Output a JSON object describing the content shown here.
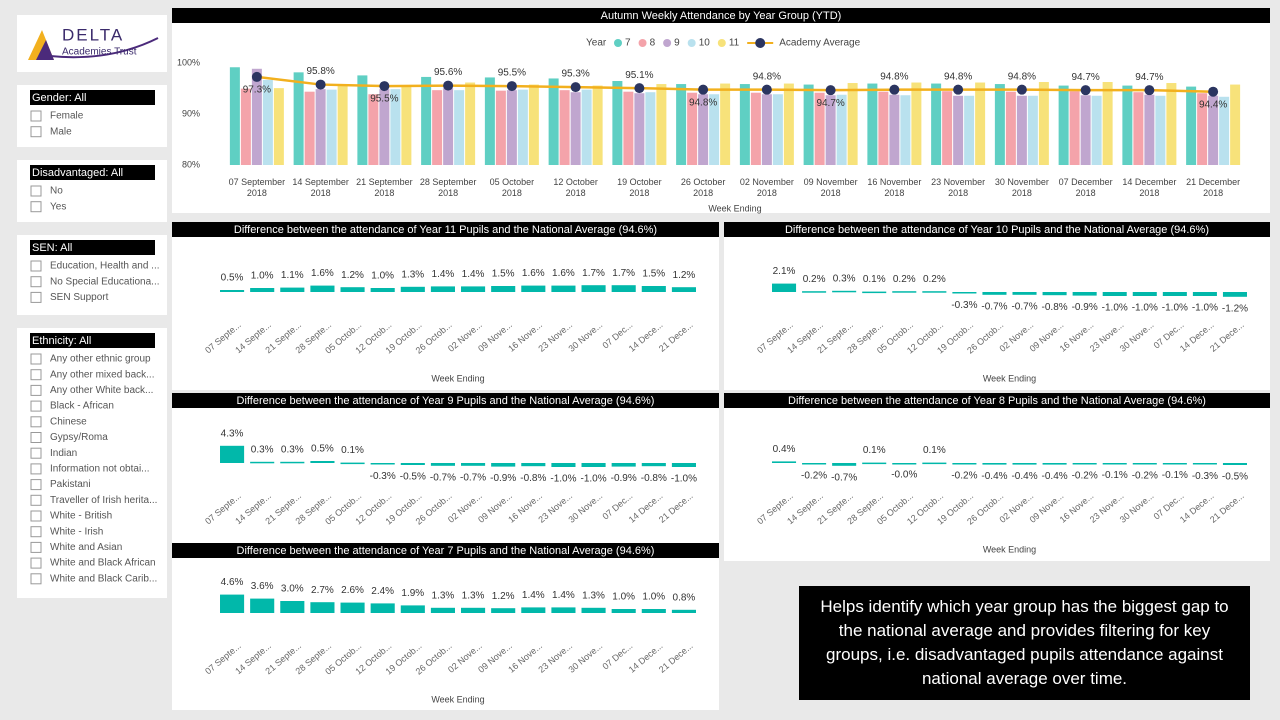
{
  "logo": {
    "name": "DELTA",
    "subtitle": "Academies Trust"
  },
  "filters": [
    {
      "title": "Gender: All",
      "options": [
        "Female",
        "Male"
      ]
    },
    {
      "title": "Disadvantaged: All",
      "options": [
        "No",
        "Yes"
      ]
    },
    {
      "title": "SEN: All",
      "options": [
        "Education, Health and ...",
        "No Special Educationa...",
        "SEN Support"
      ]
    },
    {
      "title": "Ethnicity: All",
      "options": [
        "Any other ethnic group",
        "Any other mixed back...",
        "Any other White back...",
        "Black - African",
        "Chinese",
        "Gypsy/Roma",
        "Indian",
        "Information not obtai...",
        "Pakistani",
        "Traveller of Irish herita...",
        "White - British",
        "White - Irish",
        "White and Asian",
        "White and Black African",
        "White and Black Carib..."
      ]
    }
  ],
  "note": "Helps identify which year group has the biggest gap to the national average and provides filtering for key groups, i.e. disadvantaged pupils attendance against national average over time.",
  "chart_data": [
    {
      "type": "bar",
      "title": "Autumn Weekly Attendance by Year Group (YTD)",
      "legend_title": "Year",
      "x_label": "Week Ending",
      "categories": [
        "07 September 2018",
        "14 September 2018",
        "21 September 2018",
        "28 September 2018",
        "05 October 2018",
        "12 October 2018",
        "19 October 2018",
        "26 October 2018",
        "02 November 2018",
        "09 November 2018",
        "16 November 2018",
        "23 November 2018",
        "30 November 2018",
        "07 December 2018",
        "14 December 2018",
        "21 December 2018"
      ],
      "ylim": [
        80,
        102
      ],
      "yticks": [
        {
          "value": 80,
          "label": "80%"
        },
        {
          "value": 90,
          "label": "90%"
        },
        {
          "value": 100,
          "label": "100%"
        }
      ],
      "grid": false,
      "series": [
        {
          "name": "7",
          "color": "#5fcfc3",
          "values": [
            99.2,
            98.2,
            97.6,
            97.3,
            97.2,
            97.0,
            96.5,
            95.9,
            95.9,
            95.8,
            96.0,
            96.0,
            95.9,
            95.6,
            95.6,
            95.4
          ]
        },
        {
          "name": "8",
          "color": "#f4a3aa",
          "values": [
            95.0,
            94.4,
            93.9,
            94.7,
            94.6,
            94.7,
            94.4,
            94.2,
            94.2,
            94.2,
            94.4,
            94.5,
            94.4,
            94.5,
            94.3,
            94.1
          ]
        },
        {
          "name": "9",
          "color": "#c0a6cf",
          "values": [
            98.9,
            94.9,
            94.9,
            95.1,
            94.7,
            94.3,
            94.1,
            93.9,
            93.9,
            93.7,
            93.8,
            93.6,
            93.6,
            93.7,
            93.8,
            93.6
          ]
        },
        {
          "name": "10",
          "color": "#b9e1ee",
          "values": [
            96.7,
            94.8,
            94.9,
            94.7,
            94.8,
            94.8,
            94.3,
            93.9,
            93.9,
            93.8,
            93.7,
            93.6,
            93.6,
            93.6,
            93.6,
            93.4
          ]
        },
        {
          "name": "11",
          "color": "#f7e27a",
          "values": [
            95.1,
            95.6,
            95.7,
            96.2,
            95.8,
            95.6,
            95.9,
            96.0,
            96.0,
            96.1,
            96.2,
            96.2,
            96.3,
            96.3,
            96.1,
            95.8
          ]
        },
        {
          "name": "Academy Average",
          "type": "line",
          "color": "#f2b01e",
          "marker_color": "#2b3560",
          "values": [
            97.3,
            95.8,
            95.5,
            95.6,
            95.5,
            95.3,
            95.1,
            94.8,
            94.8,
            94.7,
            94.8,
            94.8,
            94.8,
            94.7,
            94.7,
            94.4
          ],
          "value_labels": [
            "97.3%",
            "95.8%",
            "95.5%",
            "95.6%",
            "95.5%",
            "95.3%",
            "95.1%",
            "94.8%",
            "94.8%",
            "94.7%",
            "94.8%",
            "94.8%",
            "94.8%",
            "94.7%",
            "94.7%",
            "94.4%"
          ]
        }
      ]
    },
    {
      "type": "bar",
      "title": "Difference between the attendance of Year 11 Pupils and the National Average (94.6%)",
      "x_label": "Week Ending",
      "color": "#01b8aa",
      "ylim": [
        -5,
        5
      ],
      "categories": [
        "07 Septe...",
        "14 Septe...",
        "21 Septe...",
        "28 Septe...",
        "05 Octob...",
        "12 Octob...",
        "19 Octob...",
        "26 Octob...",
        "02 Nove...",
        "09 Nove...",
        "16 Nove...",
        "23 Nove...",
        "30 Nove...",
        "07 Dec...",
        "14 Dece...",
        "21 Dece..."
      ],
      "values": [
        0.5,
        1.0,
        1.1,
        1.6,
        1.2,
        1.0,
        1.3,
        1.4,
        1.4,
        1.5,
        1.6,
        1.6,
        1.7,
        1.7,
        1.5,
        1.2
      ],
      "value_labels": [
        "0.5%",
        "1.0%",
        "1.1%",
        "1.6%",
        "1.2%",
        "1.0%",
        "1.3%",
        "1.4%",
        "1.4%",
        "1.5%",
        "1.6%",
        "1.6%",
        "1.7%",
        "1.7%",
        "1.5%",
        "1.2%"
      ]
    },
    {
      "type": "bar",
      "title": "Difference between the attendance of Year 10 Pupils and the National Average (94.6%)",
      "x_label": "Week Ending",
      "color": "#01b8aa",
      "ylim": [
        -5,
        5
      ],
      "categories": [
        "07 Septe...",
        "14 Septe...",
        "21 Septe...",
        "28 Septe...",
        "05 Octob...",
        "12 Octob...",
        "19 Octob...",
        "26 Octob...",
        "02 Nove...",
        "09 Nove...",
        "16 Nove...",
        "23 Nove...",
        "30 Nove...",
        "07 Dec...",
        "14 Dece...",
        "21 Dece..."
      ],
      "values": [
        2.1,
        0.2,
        0.3,
        0.1,
        0.2,
        0.2,
        -0.3,
        -0.7,
        -0.7,
        -0.8,
        -0.9,
        -1.0,
        -1.0,
        -1.0,
        -1.0,
        -1.2
      ],
      "value_labels": [
        "2.1%",
        "0.2%",
        "0.3%",
        "0.1%",
        "0.2%",
        "0.2%",
        "-0.3%",
        "-0.7%",
        "-0.7%",
        "-0.8%",
        "-0.9%",
        "-1.0%",
        "-1.0%",
        "-1.0%",
        "-1.0%",
        "-1.2%"
      ]
    },
    {
      "type": "bar",
      "title": "Difference between the attendance of Year 9 Pupils and the National Average (94.6%)",
      "x_label": "Week Ending",
      "color": "#01b8aa",
      "ylim": [
        -5,
        5
      ],
      "categories": [
        "07 Septe...",
        "14 Septe...",
        "21 Septe...",
        "28 Septe...",
        "05 Octob...",
        "12 Octob...",
        "19 Octob...",
        "26 Octob...",
        "02 Nove...",
        "09 Nove...",
        "16 Nove...",
        "23 Nove...",
        "30 Nove...",
        "07 Dec...",
        "14 Dece...",
        "21 Dece..."
      ],
      "values": [
        4.3,
        0.3,
        0.3,
        0.5,
        0.1,
        -0.3,
        -0.5,
        -0.7,
        -0.7,
        -0.9,
        -0.8,
        -1.0,
        -1.0,
        -0.9,
        -0.8,
        -1.0
      ],
      "value_labels": [
        "4.3%",
        "0.3%",
        "0.3%",
        "0.5%",
        "0.1%",
        "-0.3%",
        "-0.5%",
        "-0.7%",
        "-0.7%",
        "-0.9%",
        "-0.8%",
        "-1.0%",
        "-1.0%",
        "-0.9%",
        "-0.8%",
        "-1.0%"
      ]
    },
    {
      "type": "bar",
      "title": "Difference between the attendance of Year 8 Pupils and the National Average (94.6%)",
      "x_label": "Week Ending",
      "color": "#01b8aa",
      "ylim": [
        -5,
        5
      ],
      "categories": [
        "07 Septe...",
        "14 Septe...",
        "21 Septe...",
        "28 Septe...",
        "05 Octob...",
        "12 Octob...",
        "19 Octob...",
        "26 Octob...",
        "02 Nove...",
        "09 Nove...",
        "16 Nove...",
        "23 Nove...",
        "30 Nove...",
        "07 Dec...",
        "14 Dece...",
        "21 Dece..."
      ],
      "values": [
        0.4,
        -0.2,
        -0.7,
        0.1,
        -0.0,
        0.1,
        -0.2,
        -0.4,
        -0.4,
        -0.4,
        -0.2,
        -0.1,
        -0.2,
        -0.1,
        -0.3,
        -0.5
      ],
      "value_labels": [
        "0.4%",
        "-0.2%",
        "-0.7%",
        "0.1%",
        "-0.0%",
        "0.1%",
        "-0.2%",
        "-0.4%",
        "-0.4%",
        "-0.4%",
        "-0.2%",
        "-0.1%",
        "-0.2%",
        "-0.1%",
        "-0.3%",
        "-0.5%"
      ]
    },
    {
      "type": "bar",
      "title": "Difference between the attendance of Year 7 Pupils and the National Average (94.6%)",
      "x_label": "Week Ending",
      "color": "#01b8aa",
      "ylim": [
        -5,
        5
      ],
      "categories": [
        "07 Septe...",
        "14 Septe...",
        "21 Septe...",
        "28 Septe...",
        "05 Octob...",
        "12 Octob...",
        "19 Octob...",
        "26 Octob...",
        "02 Nove...",
        "09 Nove...",
        "16 Nove...",
        "23 Nove...",
        "30 Nove...",
        "07 Dec...",
        "14 Dece...",
        "21 Dece..."
      ],
      "values": [
        4.6,
        3.6,
        3.0,
        2.7,
        2.6,
        2.4,
        1.9,
        1.3,
        1.3,
        1.2,
        1.4,
        1.4,
        1.3,
        1.0,
        1.0,
        0.8
      ],
      "value_labels": [
        "4.6%",
        "3.6%",
        "3.0%",
        "2.7%",
        "2.6%",
        "2.4%",
        "1.9%",
        "1.3%",
        "1.3%",
        "1.2%",
        "1.4%",
        "1.4%",
        "1.3%",
        "1.0%",
        "1.0%",
        "0.8%"
      ]
    }
  ]
}
